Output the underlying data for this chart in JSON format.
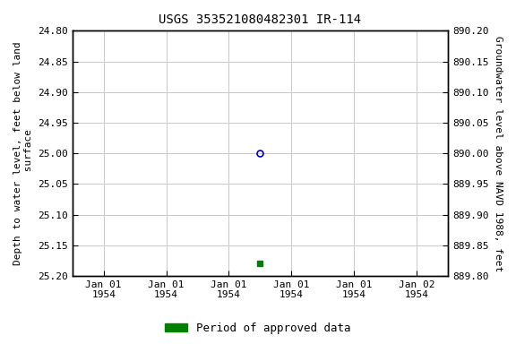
{
  "title": "USGS 353521080482301 IR-114",
  "ylabel_left": "Depth to water level, feet below land\n surface",
  "ylabel_right": "Groundwater level above NAVD 1988, feet",
  "ylim_left_bottom": 25.2,
  "ylim_left_top": 24.8,
  "ylim_right_top": 890.2,
  "ylim_right_bottom": 889.8,
  "yticks_left": [
    24.8,
    24.85,
    24.9,
    24.95,
    25.0,
    25.05,
    25.1,
    25.15,
    25.2
  ],
  "yticks_right": [
    890.2,
    890.15,
    890.1,
    890.05,
    890.0,
    889.95,
    889.9,
    889.85,
    889.8
  ],
  "point_open_x": 0.0,
  "point_open_y": 25.0,
  "point_filled_x": 0.0,
  "point_filled_y": 25.18,
  "xlim": [
    -1.5,
    1.5
  ],
  "xtick_positions": [
    -1.25,
    -0.75,
    -0.25,
    0.25,
    0.75,
    1.25
  ],
  "xtick_labels_line1": [
    "Jan 01",
    "Jan 01",
    "Jan 01",
    "Jan 01",
    "Jan 01",
    "Jan 02"
  ],
  "xtick_labels_line2": [
    "1954",
    "1954",
    "1954",
    "1954",
    "1954",
    "1954"
  ],
  "background_color": "#ffffff",
  "grid_color": "#c8c8c8",
  "open_marker_color": "#0000bb",
  "filled_marker_color": "#008000",
  "legend_label": "Period of approved data",
  "legend_color": "#008000",
  "title_fontsize": 10,
  "tick_fontsize": 8,
  "label_fontsize": 8
}
